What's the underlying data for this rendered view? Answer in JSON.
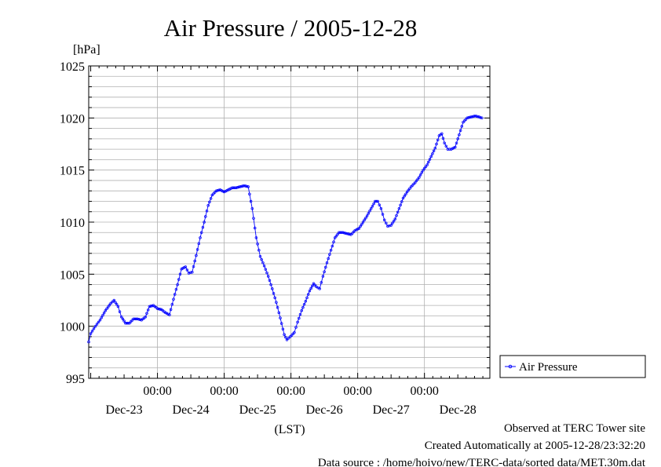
{
  "chart_data": {
    "type": "line",
    "title": "Air Pressure / 2005-12-28",
    "ylabel": "[hPa]",
    "xlabel": "(LST)",
    "ylim": [
      995,
      1025
    ],
    "yticks": [
      995,
      1000,
      1005,
      1010,
      1015,
      1020,
      1025
    ],
    "x_unit": "days from 2005-12-22 00:00 LST",
    "xlim": [
      0.97,
      6.98
    ],
    "x_tick_labels": [
      "00:00",
      "00:00",
      "00:00",
      "00:00",
      "00:00"
    ],
    "x_ticks": [
      2,
      3,
      4,
      5,
      6
    ],
    "day_labels": [
      {
        "label": "Dec-23",
        "x": 1.5
      },
      {
        "label": "Dec-24",
        "x": 2.5
      },
      {
        "label": "Dec-25",
        "x": 3.5
      },
      {
        "label": "Dec-26",
        "x": 4.5
      },
      {
        "label": "Dec-27",
        "x": 5.5
      },
      {
        "label": "Dec-28",
        "x": 6.5
      }
    ],
    "grid": true,
    "legend_position": "right",
    "series": [
      {
        "name": "Air Pressure",
        "color": "#0000ff",
        "marker": "open-circle",
        "points": [
          [
            0.97,
            998.5
          ],
          [
            1.0,
            999.3
          ],
          [
            1.07,
            1000.0
          ],
          [
            1.14,
            1000.6
          ],
          [
            1.22,
            1001.5
          ],
          [
            1.3,
            1002.2
          ],
          [
            1.35,
            1002.5
          ],
          [
            1.41,
            1001.9
          ],
          [
            1.46,
            1000.9
          ],
          [
            1.52,
            1000.3
          ],
          [
            1.58,
            1000.3
          ],
          [
            1.64,
            1000.7
          ],
          [
            1.7,
            1000.7
          ],
          [
            1.76,
            1000.6
          ],
          [
            1.82,
            1000.9
          ],
          [
            1.88,
            1001.9
          ],
          [
            1.94,
            1002.0
          ],
          [
            2.0,
            1001.7
          ],
          [
            2.06,
            1001.6
          ],
          [
            2.12,
            1001.3
          ],
          [
            2.18,
            1001.1
          ],
          [
            2.24,
            1002.6
          ],
          [
            2.3,
            1004.0
          ],
          [
            2.36,
            1005.5
          ],
          [
            2.42,
            1005.7
          ],
          [
            2.47,
            1005.1
          ],
          [
            2.52,
            1005.2
          ],
          [
            2.58,
            1006.8
          ],
          [
            2.64,
            1008.5
          ],
          [
            2.7,
            1010.0
          ],
          [
            2.76,
            1011.6
          ],
          [
            2.82,
            1012.6
          ],
          [
            2.88,
            1013.0
          ],
          [
            2.94,
            1013.1
          ],
          [
            3.0,
            1012.9
          ],
          [
            3.06,
            1013.1
          ],
          [
            3.12,
            1013.3
          ],
          [
            3.18,
            1013.3
          ],
          [
            3.24,
            1013.4
          ],
          [
            3.3,
            1013.5
          ],
          [
            3.36,
            1013.4
          ],
          [
            3.42,
            1011.3
          ],
          [
            3.48,
            1008.5
          ],
          [
            3.54,
            1006.7
          ],
          [
            3.6,
            1005.8
          ],
          [
            3.66,
            1004.8
          ],
          [
            3.72,
            1003.6
          ],
          [
            3.78,
            1002.3
          ],
          [
            3.84,
            1000.8
          ],
          [
            3.9,
            999.2
          ],
          [
            3.94,
            998.7
          ],
          [
            3.99,
            999.0
          ],
          [
            4.05,
            999.4
          ],
          [
            4.1,
            1000.4
          ],
          [
            4.16,
            1001.5
          ],
          [
            4.22,
            1002.4
          ],
          [
            4.28,
            1003.4
          ],
          [
            4.34,
            1004.1
          ],
          [
            4.38,
            1003.8
          ],
          [
            4.43,
            1003.6
          ],
          [
            4.48,
            1004.8
          ],
          [
            4.54,
            1006.1
          ],
          [
            4.6,
            1007.3
          ],
          [
            4.66,
            1008.5
          ],
          [
            4.72,
            1009.0
          ],
          [
            4.78,
            1009.0
          ],
          [
            4.84,
            1008.9
          ],
          [
            4.9,
            1008.8
          ],
          [
            4.96,
            1009.2
          ],
          [
            5.02,
            1009.4
          ],
          [
            5.08,
            1010.0
          ],
          [
            5.14,
            1010.6
          ],
          [
            5.2,
            1011.3
          ],
          [
            5.26,
            1012.0
          ],
          [
            5.3,
            1012.0
          ],
          [
            5.35,
            1011.3
          ],
          [
            5.4,
            1010.2
          ],
          [
            5.45,
            1009.6
          ],
          [
            5.5,
            1009.7
          ],
          [
            5.56,
            1010.3
          ],
          [
            5.62,
            1011.3
          ],
          [
            5.68,
            1012.3
          ],
          [
            5.74,
            1012.9
          ],
          [
            5.8,
            1013.4
          ],
          [
            5.86,
            1013.8
          ],
          [
            5.92,
            1014.3
          ],
          [
            5.98,
            1015.0
          ],
          [
            6.04,
            1015.5
          ],
          [
            6.1,
            1016.3
          ],
          [
            6.16,
            1017.1
          ],
          [
            6.22,
            1018.3
          ],
          [
            6.26,
            1018.5
          ],
          [
            6.3,
            1017.6
          ],
          [
            6.35,
            1017.0
          ],
          [
            6.4,
            1017.0
          ],
          [
            6.46,
            1017.2
          ],
          [
            6.52,
            1018.4
          ],
          [
            6.58,
            1019.6
          ],
          [
            6.64,
            1020.0
          ],
          [
            6.7,
            1020.1
          ],
          [
            6.76,
            1020.2
          ],
          [
            6.82,
            1020.1
          ],
          [
            6.86,
            1020.0
          ]
        ]
      }
    ],
    "footer": [
      "Observed at TERC Tower site",
      "Created Automatically at 2005-12-28/23:32:20",
      "Data source : /home/hoivo/new/TERC-data/sorted  data/MET.30m.dat"
    ]
  }
}
